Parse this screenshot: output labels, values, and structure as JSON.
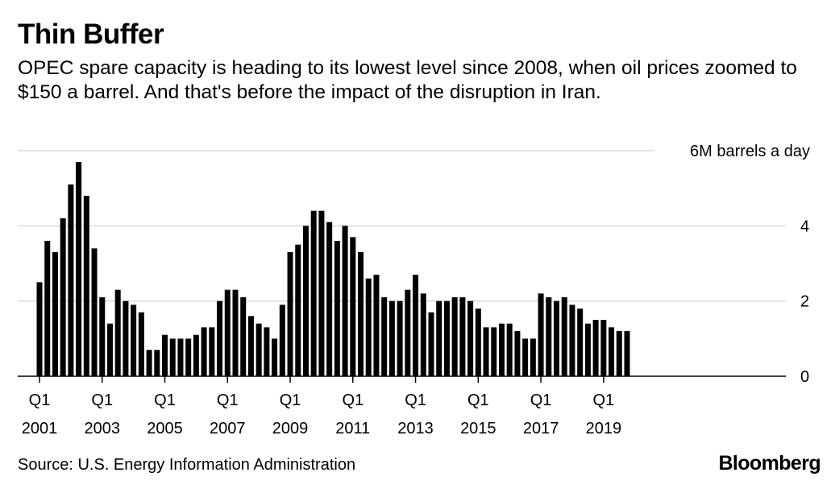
{
  "title": "Thin Buffer",
  "subtitle": "OPEC spare capacity is heading to its lowest level since 2008, when oil prices zoomed to $150 a barrel. And that's before the impact of the disruption in Iran.",
  "source": "Source: U.S. Energy Information Administration",
  "brand": "Bloomberg",
  "colors": {
    "bar": "#000000",
    "grid": "#d9d9d9",
    "background": "#ffffff"
  },
  "chart_data": {
    "type": "bar",
    "unit_label": "6M barrels a day",
    "ylim": [
      0,
      6
    ],
    "y_ticks": [
      {
        "value": 0,
        "label": "0"
      },
      {
        "value": 2,
        "label": "2"
      },
      {
        "value": 4,
        "label": "4"
      },
      {
        "value": 6,
        "label": "6M barrels a day"
      }
    ],
    "y_axis_side": "right",
    "grid": true,
    "start": {
      "year": 2001,
      "quarter": 1
    },
    "x_ticks": [
      {
        "index": 0,
        "label_top": "Q1",
        "label_bottom": "2001"
      },
      {
        "index": 8,
        "label_top": "Q1",
        "label_bottom": "2003"
      },
      {
        "index": 16,
        "label_top": "Q1",
        "label_bottom": "2005"
      },
      {
        "index": 24,
        "label_top": "Q1",
        "label_bottom": "2007"
      },
      {
        "index": 32,
        "label_top": "Q1",
        "label_bottom": "2009"
      },
      {
        "index": 40,
        "label_top": "Q1",
        "label_bottom": "2011"
      },
      {
        "index": 48,
        "label_top": "Q1",
        "label_bottom": "2013"
      },
      {
        "index": 56,
        "label_top": "Q1",
        "label_bottom": "2015"
      },
      {
        "index": 64,
        "label_top": "Q1",
        "label_bottom": "2017"
      },
      {
        "index": 72,
        "label_top": "Q1",
        "label_bottom": "2019"
      }
    ],
    "values": [
      2.5,
      3.6,
      3.3,
      4.2,
      5.1,
      5.7,
      4.8,
      3.4,
      2.1,
      1.4,
      2.3,
      2.0,
      1.9,
      1.7,
      0.7,
      0.7,
      1.1,
      1.0,
      1.0,
      1.0,
      1.1,
      1.3,
      1.3,
      2.0,
      2.3,
      2.3,
      2.1,
      1.6,
      1.4,
      1.3,
      1.0,
      1.9,
      3.3,
      3.5,
      4.0,
      4.4,
      4.4,
      4.1,
      3.6,
      4.0,
      3.7,
      3.3,
      2.6,
      2.7,
      2.1,
      2.0,
      2.0,
      2.3,
      2.7,
      2.2,
      1.7,
      2.0,
      2.0,
      2.1,
      2.1,
      2.0,
      1.8,
      1.3,
      1.3,
      1.4,
      1.4,
      1.2,
      1.0,
      1.0,
      2.2,
      2.1,
      2.0,
      2.1,
      1.9,
      1.8,
      1.4,
      1.5,
      1.5,
      1.3,
      1.2,
      1.2
    ]
  }
}
